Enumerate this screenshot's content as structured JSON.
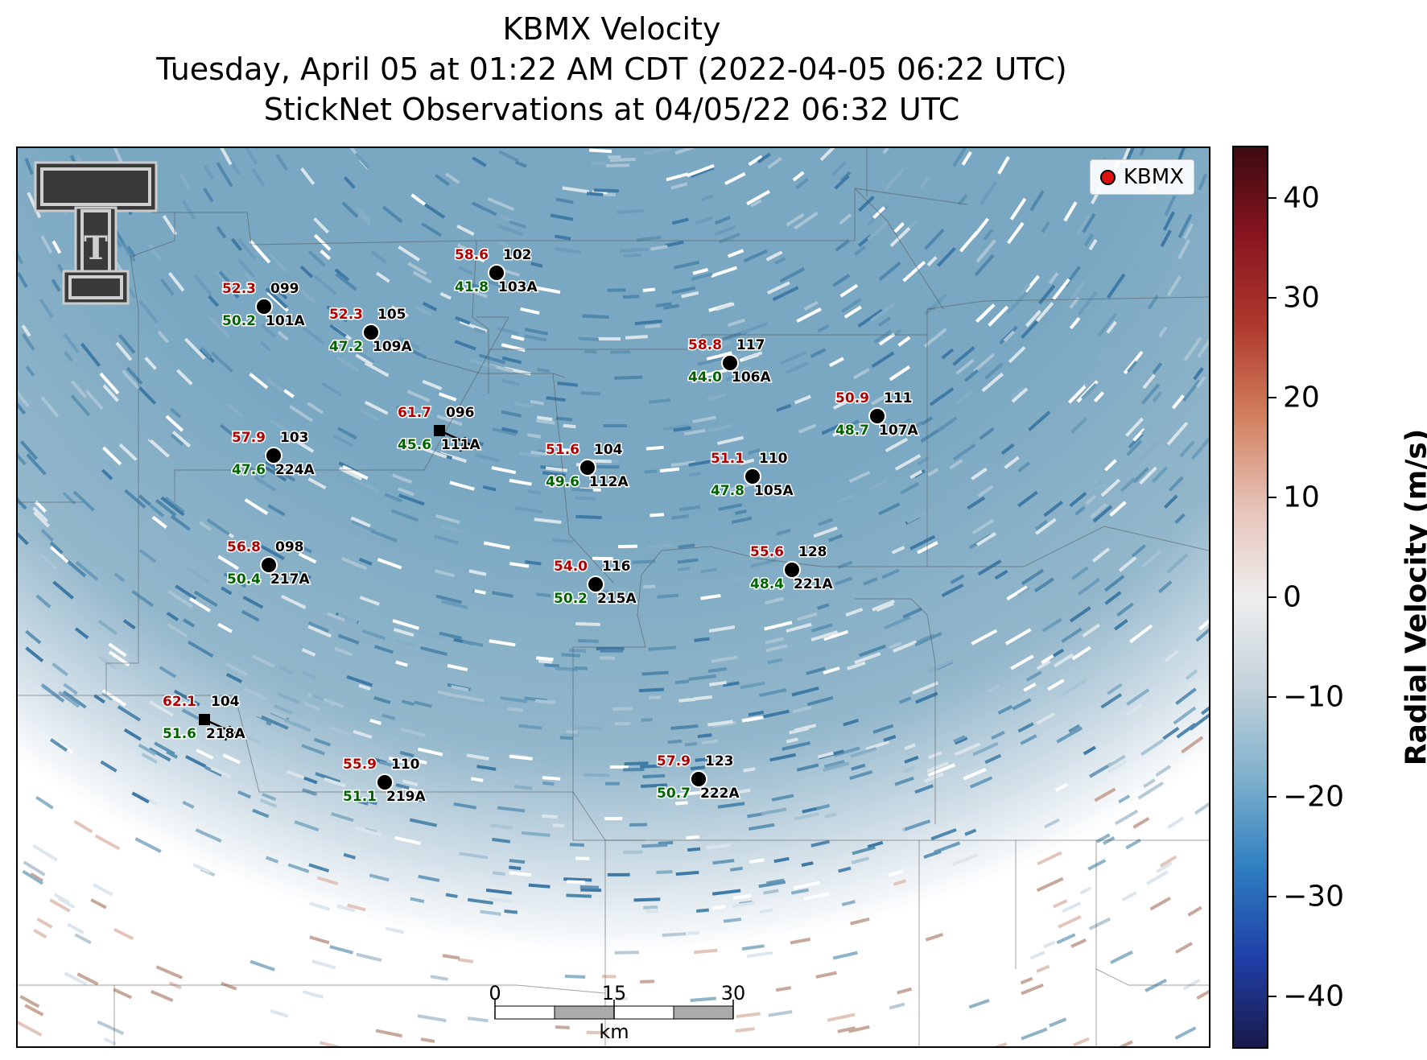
{
  "title": {
    "line1": "KBMX Velocity",
    "line2": "Tuesday, April 05 at 01:22 AM CDT (2022-04-05 06:22 UTC)",
    "line3": "StickNet Observations at 04/05/22 06:32 UTC"
  },
  "legend": {
    "label": "KBMX",
    "marker_color": "#e01010"
  },
  "colorbar": {
    "title": "Radial Velocity (m/s)",
    "ticks": [
      "40",
      "30",
      "20",
      "10",
      "0",
      "−10",
      "−20",
      "−30",
      "−40"
    ],
    "range": [
      -45,
      45
    ],
    "colors": [
      "#1a1a4a",
      "#1f3fa8",
      "#2f7fc0",
      "#7fb1cc",
      "#c4d2da",
      "#eeeeee",
      "#e6c2b8",
      "#d2805e",
      "#b03a2e",
      "#8a1520",
      "#3d0a10"
    ]
  },
  "scalebar": {
    "ticks": [
      "0",
      "15",
      "30"
    ],
    "unit": "km"
  },
  "logo": {
    "glyph": "T"
  },
  "stations": [
    {
      "gust": "52.3",
      "sustained": "50.2",
      "direction": "099",
      "id": "101A",
      "marker": "circle"
    },
    {
      "gust": "58.6",
      "sustained": "41.8",
      "direction": "102",
      "id": "103A",
      "marker": "circle"
    },
    {
      "gust": "52.3",
      "sustained": "47.2",
      "direction": "105",
      "id": "109A",
      "marker": "circle"
    },
    {
      "gust": "58.8",
      "sustained": "44.0",
      "direction": "117",
      "id": "106A",
      "marker": "circle"
    },
    {
      "gust": "50.9",
      "sustained": "48.7",
      "direction": "111",
      "id": "107A",
      "marker": "circle"
    },
    {
      "gust": "61.7",
      "sustained": "45.6",
      "direction": "096",
      "id": "111A",
      "marker": "square"
    },
    {
      "gust": "57.9",
      "sustained": "47.6",
      "direction": "103",
      "id": "224A",
      "marker": "circle"
    },
    {
      "gust": "51.6",
      "sustained": "49.6",
      "direction": "104",
      "id": "112A",
      "marker": "circle"
    },
    {
      "gust": "51.1",
      "sustained": "47.8",
      "direction": "110",
      "id": "105A",
      "marker": "circle"
    },
    {
      "gust": "56.8",
      "sustained": "50.4",
      "direction": "098",
      "id": "217A",
      "marker": "circle"
    },
    {
      "gust": "54.0",
      "sustained": "50.2",
      "direction": "116",
      "id": "215A",
      "marker": "circle"
    },
    {
      "gust": "55.6",
      "sustained": "48.4",
      "direction": "128",
      "id": "221A",
      "marker": "circle"
    },
    {
      "gust": "62.1",
      "sustained": "51.6",
      "direction": "104",
      "id": "218A",
      "marker": "square"
    },
    {
      "gust": "55.9",
      "sustained": "51.1",
      "direction": "110",
      "id": "219A",
      "marker": "circle"
    },
    {
      "gust": "57.9",
      "sustained": "50.7",
      "direction": "123",
      "id": "222A",
      "marker": "circle"
    }
  ]
}
